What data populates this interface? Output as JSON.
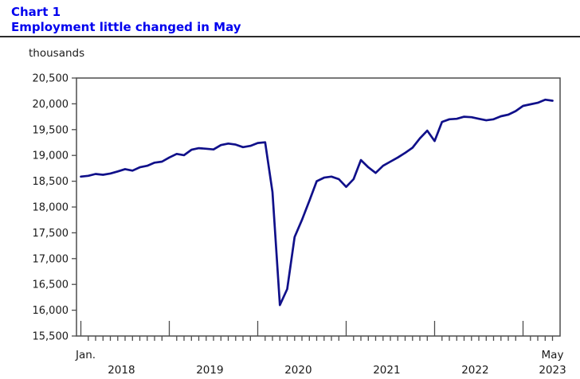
{
  "header": {
    "chart_label": "Chart 1",
    "title": "Employment little changed in May"
  },
  "axis_unit_label": "thousands",
  "colors": {
    "title_blue": "#0000ee",
    "line_navy": "#10108a",
    "axis_gray": "#4d4d4d",
    "text_dark": "#1a1a1a",
    "divider": "#2b2b2b"
  },
  "chart_data": {
    "type": "line",
    "title": "Employment little changed in May",
    "ylabel": "thousands",
    "xlabel": "",
    "grid": false,
    "legend": "none",
    "ylim": [
      15500,
      20500
    ],
    "y_tick_step": 500,
    "x_start": "2018-01",
    "x_end": "2023-05",
    "x_tick_labels": {
      "first": "Jan.",
      "years": [
        "2018",
        "2019",
        "2020",
        "2021",
        "2022"
      ],
      "last_month": "May",
      "last_year": "2023"
    },
    "series": [
      {
        "name": "Employment (thousands)",
        "color": "#10108a",
        "values": [
          18590,
          18605,
          18640,
          18625,
          18650,
          18690,
          18735,
          18705,
          18770,
          18800,
          18860,
          18880,
          18960,
          19030,
          19005,
          19110,
          19140,
          19130,
          19115,
          19200,
          19230,
          19210,
          19160,
          19185,
          19240,
          19255,
          18290,
          16100,
          16410,
          17420,
          17750,
          18120,
          18500,
          18570,
          18590,
          18540,
          18390,
          18540,
          18910,
          18770,
          18660,
          18800,
          18880,
          18960,
          19050,
          19150,
          19330,
          19480,
          19280,
          19650,
          19700,
          19710,
          19750,
          19740,
          19710,
          19680,
          19700,
          19760,
          19790,
          19860,
          19960,
          19990,
          20020,
          20080,
          20060
        ]
      }
    ]
  }
}
